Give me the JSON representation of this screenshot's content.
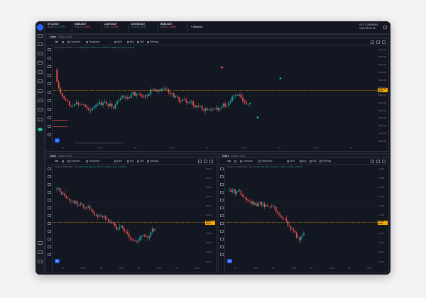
{
  "tickers": [
    {
      "name": "BTCUSDT",
      "price": "69350.93",
      "change": "1.97%",
      "dir": "up"
    },
    {
      "name": "BNBUSDT",
      "price": "606.24",
      "change": "-0.46%",
      "dir": "dn"
    },
    {
      "name": "CAKEUSDT",
      "price": "2.903",
      "change": "-2.45%",
      "dir": "dn"
    },
    {
      "name": "DOGEUSDT",
      "price": "0.1674",
      "change": "1.47%",
      "dir": "up"
    },
    {
      "name": "BNBUSDT",
      "price": "605.61",
      "change": "-0.39%",
      "dir": "dn"
    }
  ],
  "add_ticker": "+ View All",
  "account": {
    "line1": "BTC 0.29190093",
    "line2": "USD 20741.32"
  },
  "panes": [
    {
      "tabs": [
        "Chart",
        "Market Depth"
      ],
      "toolbar": {
        "interval": "1m",
        "compare": "Compare",
        "templates": "Templates",
        "alert": "Alert",
        "buy": "Buy",
        "sell": "Sell",
        "settings": "Settings"
      },
      "legend": {
        "symbol": "Binance: BTC/USDT · 1m",
        "o": "O 69342.90",
        "h": "H 69357.40",
        "l": "L 69338.00",
        "c": "C 69350.93",
        "chg": "+8.03 (+0.01%)"
      },
      "price_labels": [
        "69400.00",
        "69380.00",
        "69360.00",
        "69340.00",
        "69320.00",
        "69300.00",
        "69280.00",
        "69260.00",
        "69240.00",
        "69220.00",
        "69200.00",
        "69180.00",
        "69160.00"
      ],
      "current_price": "69350.93",
      "current_time": "00:37",
      "time_labels": [
        "20",
        "04:00",
        "08",
        "12:00",
        "16",
        "20:00",
        "24",
        "04:00",
        "08"
      ]
    },
    {
      "tabs": [
        "Chart",
        "Market Depth"
      ],
      "toolbar": {
        "interval": "1m",
        "compare": "Compare",
        "templates": "Templates",
        "alert": "Alert",
        "buy": "Buy",
        "sell": "Sell",
        "settings": "Settings"
      },
      "legend": {
        "symbol": "Binance: BNB/USDT · 1m",
        "o": "O 606.10",
        "h": "H 606.40",
        "l": "L 606.00",
        "c": "C 606.24",
        "chg": "+0.14 (+0.02%)"
      },
      "price_labels": [
        "607.20",
        "607.00",
        "606.80",
        "606.60",
        "606.40",
        "606.20",
        "606.00",
        "605.80",
        "605.60",
        "605.40",
        "605.20"
      ],
      "current_price": "606.24",
      "current_time": "00:37",
      "time_labels": [
        "20",
        "04:00",
        "08",
        "12:00",
        "16",
        "20:00",
        "24",
        "04:00"
      ]
    },
    {
      "tabs": [
        "Chart",
        "Market Depth"
      ],
      "toolbar": {
        "interval": "1m",
        "compare": "Compare",
        "templates": "Templates",
        "alert": "Alert",
        "buy": "Buy",
        "sell": "Sell",
        "settings": "Settings"
      },
      "legend": {
        "symbol": "Binance: DOGE/USDT · 1m",
        "o": "O 0.1673",
        "h": "H 0.1675",
        "l": "L 0.1672",
        "c": "C 0.1674",
        "chg": "+0.0001 (+0.06%)"
      },
      "price_labels": [
        "0.1690",
        "0.1688",
        "0.1686",
        "0.1684",
        "0.1682",
        "0.1680",
        "0.1678",
        "0.1676",
        "0.1674",
        "0.1672",
        "0.1670"
      ],
      "current_price": "0.1674",
      "current_time": "00:37",
      "time_labels": [
        "20",
        "04:00",
        "08",
        "12:00",
        "16",
        "20:00",
        "24",
        "04:00"
      ]
    }
  ],
  "colors": {
    "up": "#26a69a",
    "down": "#ef5350",
    "accent": "#f7a600",
    "bg": "#131722"
  }
}
